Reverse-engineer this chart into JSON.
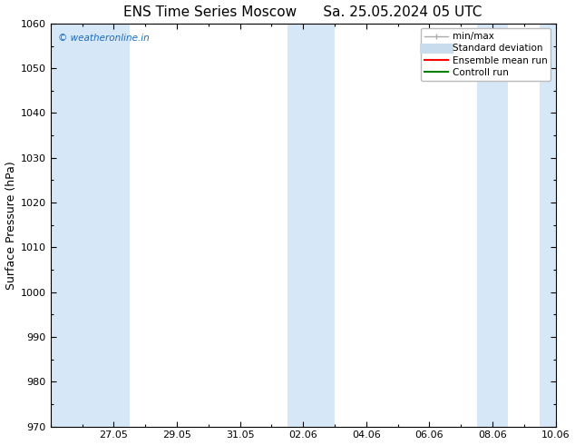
{
  "title": "ENS Time Series Moscow      Sa. 25.05.2024 05 UTC",
  "ylabel": "Surface Pressure (hPa)",
  "ylim": [
    970,
    1060
  ],
  "yticks": [
    970,
    980,
    990,
    1000,
    1010,
    1020,
    1030,
    1040,
    1050,
    1060
  ],
  "xlim_start": 0,
  "xlim_end": 16,
  "xtick_labels": [
    "27.05",
    "29.05",
    "31.05",
    "02.06",
    "04.06",
    "06.06",
    "08.06",
    "10.06"
  ],
  "xtick_positions": [
    2,
    4,
    6,
    8,
    10,
    12,
    14,
    16
  ],
  "background_color": "#ffffff",
  "plot_bg_color": "#ffffff",
  "shaded_bands": [
    {
      "x_start": 0,
      "x_end": 1.5,
      "color": "#d6e8f7"
    },
    {
      "x_start": 1.5,
      "x_end": 2.5,
      "color": "#d6e8f7"
    },
    {
      "x_start": 7.5,
      "x_end": 9.0,
      "color": "#d6e8f7"
    },
    {
      "x_start": 13.5,
      "x_end": 14.5,
      "color": "#d6e8f7"
    },
    {
      "x_start": 15.5,
      "x_end": 16.0,
      "color": "#d6e8f7"
    }
  ],
  "legend_items": [
    {
      "label": "min/max",
      "color": "#aaaaaa",
      "lw": 1.0,
      "style": "minmax"
    },
    {
      "label": "Standard deviation",
      "color": "#c8dced",
      "lw": 8,
      "style": "line"
    },
    {
      "label": "Ensemble mean run",
      "color": "#ff0000",
      "lw": 1.5,
      "style": "line"
    },
    {
      "label": "Controll run",
      "color": "#008000",
      "lw": 1.5,
      "style": "line"
    }
  ],
  "watermark": "© weatheronline.in",
  "watermark_color": "#1a6abf",
  "title_fontsize": 11,
  "label_fontsize": 9,
  "tick_fontsize": 8,
  "legend_fontsize": 7.5
}
